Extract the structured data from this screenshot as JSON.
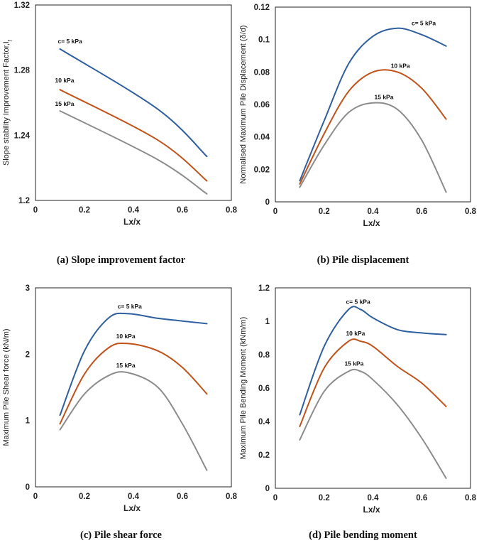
{
  "figure": {
    "captions": [
      "(a) Slope improvement factor",
      "(b) Pile displacement",
      "(c) Pile shear force",
      "(d) Pile bending moment"
    ]
  },
  "colors": {
    "c5": "#2f5f9f",
    "c10": "#c0521a",
    "c15": "#8c8c8c"
  },
  "chart_data": [
    {
      "type": "line",
      "xlabel": "Lx/x",
      "ylabel": "Slope stability Improvement Factor,I",
      "ylabel_subscript": "f",
      "xlim": [
        0,
        0.8
      ],
      "ylim": [
        1.2,
        1.32
      ],
      "xticks": [
        "0",
        "0.2",
        "0.4",
        "0.6",
        "0.8"
      ],
      "yticks": [
        "1.2",
        "1.24",
        "1.28",
        "1.32"
      ],
      "xtick_values": [
        0,
        0.2,
        0.4,
        0.6,
        0.8
      ],
      "ytick_values": [
        1.2,
        1.24,
        1.28,
        1.32
      ],
      "series": [
        {
          "name": "c= 5 kPa",
          "color_key": "c5",
          "x": [
            0.1,
            0.5,
            0.7
          ],
          "y": [
            1.293,
            1.256,
            1.227
          ]
        },
        {
          "name": "10 kPa",
          "color_key": "c10",
          "x": [
            0.1,
            0.5,
            0.7
          ],
          "y": [
            1.268,
            1.237,
            1.212
          ]
        },
        {
          "name": "15 kPa",
          "color_key": "c15",
          "x": [
            0.1,
            0.5,
            0.7
          ],
          "y": [
            1.255,
            1.225,
            1.204
          ]
        }
      ]
    },
    {
      "type": "line",
      "xlabel": "Lx/x",
      "ylabel": "Normalised Maximum Pile Displacement (δ/d)",
      "xlim": [
        0,
        0.8
      ],
      "ylim": [
        0,
        0.12
      ],
      "xticks": [
        "0",
        "0.2",
        "0.4",
        "0.6",
        "0.8"
      ],
      "yticks": [
        "0",
        "0.02",
        "0.04",
        "0.06",
        "0.08",
        "0.1",
        "0.12"
      ],
      "xtick_values": [
        0,
        0.2,
        0.4,
        0.6,
        0.8
      ],
      "ytick_values": [
        0,
        0.02,
        0.04,
        0.06,
        0.08,
        0.1,
        0.12
      ],
      "series": [
        {
          "name": "c= 5 kPa",
          "color_key": "c5",
          "x": [
            0.1,
            0.2,
            0.3,
            0.4,
            0.5,
            0.6,
            0.7
          ],
          "y": [
            0.013,
            0.05,
            0.085,
            0.102,
            0.107,
            0.103,
            0.096
          ]
        },
        {
          "name": "10 kPa",
          "color_key": "c10",
          "x": [
            0.1,
            0.2,
            0.3,
            0.4,
            0.5,
            0.6,
            0.7
          ],
          "y": [
            0.011,
            0.042,
            0.068,
            0.08,
            0.08,
            0.07,
            0.051
          ]
        },
        {
          "name": "15 kPa",
          "color_key": "c15",
          "x": [
            0.1,
            0.2,
            0.3,
            0.4,
            0.5,
            0.6,
            0.7
          ],
          "y": [
            0.009,
            0.035,
            0.055,
            0.061,
            0.057,
            0.038,
            0.006
          ]
        }
      ]
    },
    {
      "type": "line",
      "xlabel": "Lx/x",
      "ylabel": "Maximum Pile Shear force (kN/m)",
      "xlim": [
        0,
        0.8
      ],
      "ylim": [
        0,
        3
      ],
      "xticks": [
        "0",
        "0.2",
        "0.4",
        "0.6",
        "0.8"
      ],
      "yticks": [
        "0",
        "1",
        "2",
        "3"
      ],
      "xtick_values": [
        0,
        0.2,
        0.4,
        0.6,
        0.8
      ],
      "ytick_values": [
        0,
        1,
        2,
        3
      ],
      "series": [
        {
          "name": "c= 5 kPa",
          "color_key": "c5",
          "x": [
            0.1,
            0.2,
            0.3,
            0.38,
            0.5,
            0.6,
            0.7
          ],
          "y": [
            1.08,
            2.05,
            2.55,
            2.61,
            2.54,
            2.5,
            2.46
          ]
        },
        {
          "name": "10 kPa",
          "color_key": "c10",
          "x": [
            0.1,
            0.2,
            0.3,
            0.38,
            0.5,
            0.6,
            0.7
          ],
          "y": [
            0.95,
            1.7,
            2.1,
            2.16,
            2.05,
            1.8,
            1.4
          ]
        },
        {
          "name": "15 kPa",
          "color_key": "c15",
          "x": [
            0.1,
            0.2,
            0.3,
            0.38,
            0.5,
            0.6,
            0.7
          ],
          "y": [
            0.86,
            1.4,
            1.68,
            1.72,
            1.5,
            0.95,
            0.25
          ]
        }
      ]
    },
    {
      "type": "line",
      "xlabel": "Lx/x",
      "ylabel": "Maximum Pile Bending Moment (kNm/m)",
      "xlim": [
        0,
        0.8
      ],
      "ylim": [
        0,
        1.2
      ],
      "xticks": [
        "0",
        "0.2",
        "0.4",
        "0.6",
        "0.8"
      ],
      "yticks": [
        "0",
        "0.2",
        "0.4",
        "0.6",
        "0.8",
        "1",
        "1.2"
      ],
      "xtick_values": [
        0,
        0.2,
        0.4,
        0.6,
        0.8
      ],
      "ytick_values": [
        0,
        0.2,
        0.4,
        0.6,
        0.8,
        1,
        1.2
      ],
      "series": [
        {
          "name": "c= 5 kPa",
          "color_key": "c5",
          "x": [
            0.1,
            0.2,
            0.3,
            0.35,
            0.4,
            0.5,
            0.6,
            0.7
          ],
          "y": [
            0.44,
            0.85,
            1.07,
            1.07,
            1.02,
            0.95,
            0.93,
            0.92
          ]
        },
        {
          "name": "10 kPa",
          "color_key": "c10",
          "x": [
            0.1,
            0.2,
            0.3,
            0.35,
            0.4,
            0.5,
            0.6,
            0.7
          ],
          "y": [
            0.37,
            0.72,
            0.88,
            0.88,
            0.85,
            0.73,
            0.63,
            0.49
          ]
        },
        {
          "name": "15 kPa",
          "color_key": "c15",
          "x": [
            0.1,
            0.2,
            0.3,
            0.35,
            0.4,
            0.5,
            0.6,
            0.7
          ],
          "y": [
            0.29,
            0.58,
            0.7,
            0.7,
            0.65,
            0.5,
            0.3,
            0.06
          ]
        }
      ]
    }
  ]
}
